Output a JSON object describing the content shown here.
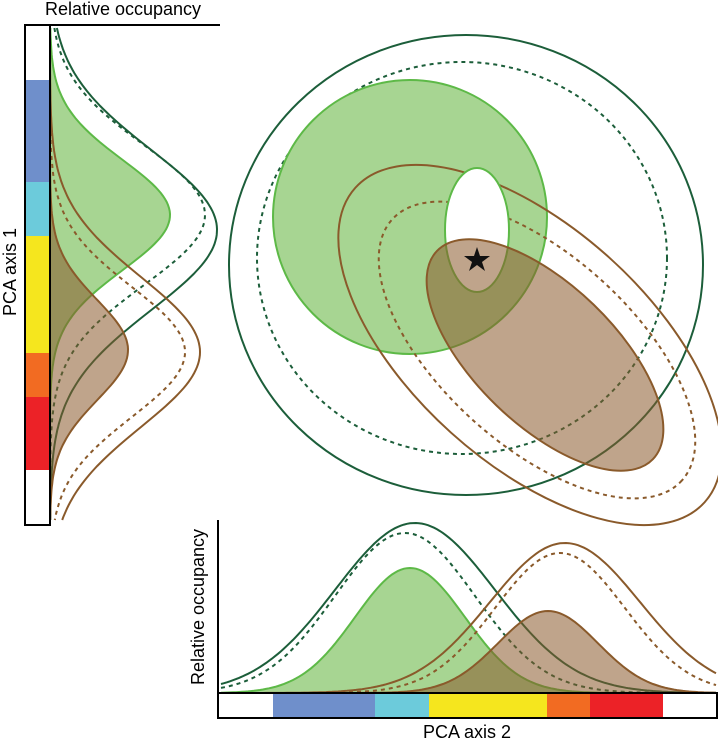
{
  "left_panel": {
    "axis_label": "Relative occupancy",
    "side_label": "PCA axis 1"
  },
  "bottom_panel": {
    "axis_label": "Relative occupancy",
    "side_label": "PCA axis 2"
  }
}
